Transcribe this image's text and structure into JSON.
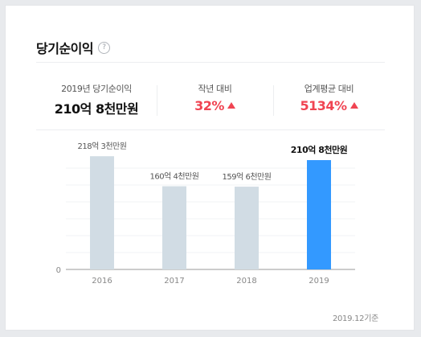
{
  "card": {
    "title": "당기순이익",
    "help_glyph": "?",
    "footnote": "2019.12기준"
  },
  "metrics": {
    "current": {
      "label": "2019년 당기순이익",
      "value": "210억 8천만원"
    },
    "yoy": {
      "label": "작년 대비",
      "value": "32%",
      "direction": "up"
    },
    "industry": {
      "label": "업계평균 대비",
      "value": "5134%",
      "direction": "up"
    }
  },
  "colors": {
    "bar_default": "#d1dce4",
    "bar_highlight": "#3399ff",
    "up": "#f04452"
  },
  "chart_data": {
    "type": "bar",
    "categories": [
      "2016",
      "2017",
      "2018",
      "2019"
    ],
    "values": [
      218.3,
      160.4,
      159.6,
      210.8
    ],
    "data_labels": [
      "218억 3천만원",
      "160억 4천만원",
      "159억 6천만원",
      "210억 8천만원"
    ],
    "highlight_index": 3,
    "y_ticks": [
      "0"
    ],
    "ylim": [
      0,
      245
    ],
    "grid": true
  }
}
